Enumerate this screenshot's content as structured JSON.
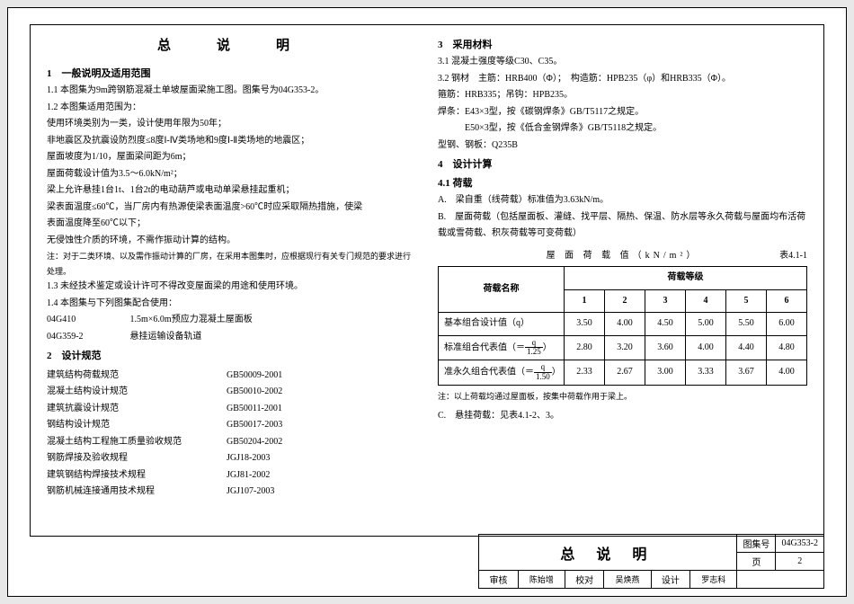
{
  "title": "总　说　明",
  "left": {
    "s1_h": "1　一般说明及适用范围",
    "s1_1": "1.1 本图集为9m跨钢筋混凝土单坡屋面梁施工图。图集号为04G353-2。",
    "s1_2": "1.2 本图集适用范围为：",
    "s1_2_l1": "使用环境类别为一类，设计使用年限为50年；",
    "s1_2_l2": "非地震区及抗震设防烈度≤8度Ⅰ-Ⅳ类场地和9度Ⅰ-Ⅱ类场地的地震区；",
    "s1_2_l3": "屋面坡度为1/10，屋面梁间距为6m；",
    "s1_2_l4": "屋面荷载设计值为3.5～6.0kN/m²；",
    "s1_2_l5": "梁上允许悬挂1台1t、1台2t的电动葫芦或电动单梁悬挂起重机；",
    "s1_2_l6": "梁表面温度≤60℃，当厂房内有热源使梁表面温度>60℃时应采取隔热措施，使梁",
    "s1_2_l7": "表面温度降至60℃以下；",
    "s1_2_l8": "无侵蚀性介质的环境，不需作振动计算的结构。",
    "s1_2_note": "注：对于二类环境、以及需作振动计算的厂房，在采用本图集时，应根据现行有关专门规范的要求进行处理。",
    "s1_3": "1.3 未经技术鉴定或设计许可不得改变屋面梁的用途和使用环境。",
    "s1_4": "1.4 本图集与下列图集配合使用：",
    "s1_4_l1a": "04G410",
    "s1_4_l1b": "1.5m×6.0m预应力混凝土屋面板",
    "s1_4_l2a": "04G359-2",
    "s1_4_l2b": "悬挂运输设备轨道",
    "s2_h": "2　设计规范",
    "specs": [
      {
        "name": "建筑结构荷载规范",
        "code": "GB50009-2001"
      },
      {
        "name": "混凝土结构设计规范",
        "code": "GB50010-2002"
      },
      {
        "name": "建筑抗震设计规范",
        "code": "GB50011-2001"
      },
      {
        "name": "钢结构设计规范",
        "code": "GB50017-2003"
      },
      {
        "name": "混凝土结构工程施工质量验收规范",
        "code": "GB50204-2002"
      },
      {
        "name": "钢筋焊接及验收规程",
        "code": "JGJ18-2003"
      },
      {
        "name": "建筑钢结构焊接技术规程",
        "code": "JGJ81-2002"
      },
      {
        "name": "钢筋机械连接通用技术规程",
        "code": "JGJ107-2003"
      }
    ]
  },
  "right": {
    "s3_h": "3　采用材料",
    "s3_1": "3.1 混凝土强度等级C30、C35。",
    "s3_2a": "3.2 钢材　主筋：HRB400（Φ）；　构造筋：HPB235（φ）和HRB335（Φ）。",
    "s3_2b": "箍筋：HRB335；吊钩：HPB235。",
    "s3_2c": "焊条：E43×3型，按《碳钢焊条》GB/T5117之规定。",
    "s3_2d": "　　　E50×3型，按《低合金钢焊条》GB/T5118之规定。",
    "s3_2e": "型钢、钢板：Q235B",
    "s4_h": "4　设计计算",
    "s4_1": "4.1 荷载",
    "s4_A": "A.　梁自重（线荷载）标准值为3.63kN/m。",
    "s4_B": "B.　屋面荷载（包括屋面板、灌缝、找平层、隔热、保温、防水层等永久荷载与屋面均布活荷载或雪荷载、积灰荷载等可变荷载）",
    "table": {
      "caption_center": "屋 面 荷 载 值（kN/m²）",
      "caption_right": "表4.1-1",
      "col_group": "荷载等级",
      "row_label": "荷载名称",
      "levels": [
        "1",
        "2",
        "3",
        "4",
        "5",
        "6"
      ],
      "rows": [
        {
          "label": "基本组合设计值（q）",
          "vals": [
            "3.50",
            "4.00",
            "4.50",
            "5.00",
            "5.50",
            "6.00"
          ]
        },
        {
          "label_pre": "标准组合代表值（＝",
          "num": "q",
          "den": "1.25",
          "label_post": "）",
          "vals": [
            "2.80",
            "3.20",
            "3.60",
            "4.00",
            "4.40",
            "4.80"
          ]
        },
        {
          "label_pre": "准永久组合代表值（＝",
          "num": "q",
          "den": "1.50",
          "label_post": "）",
          "vals": [
            "2.33",
            "2.67",
            "3.00",
            "3.33",
            "3.67",
            "4.00"
          ]
        }
      ],
      "note": "注：以上荷载均通过屋面板，按集中荷载作用于梁上。"
    },
    "s4_C": "C.　悬挂荷载：见表4.1-2、3。"
  },
  "footer": {
    "big": "总 说 明",
    "set_label": "图集号",
    "set_val": "04G353-2",
    "r_names_l": "审核",
    "r_names_l_v": "陈始增",
    "r_names_m": "校对",
    "r_names_m_v": "吴焕燕",
    "r_names_r": "设计",
    "r_names_r_v": "罗志科",
    "page_label": "页",
    "page_val": "2"
  }
}
